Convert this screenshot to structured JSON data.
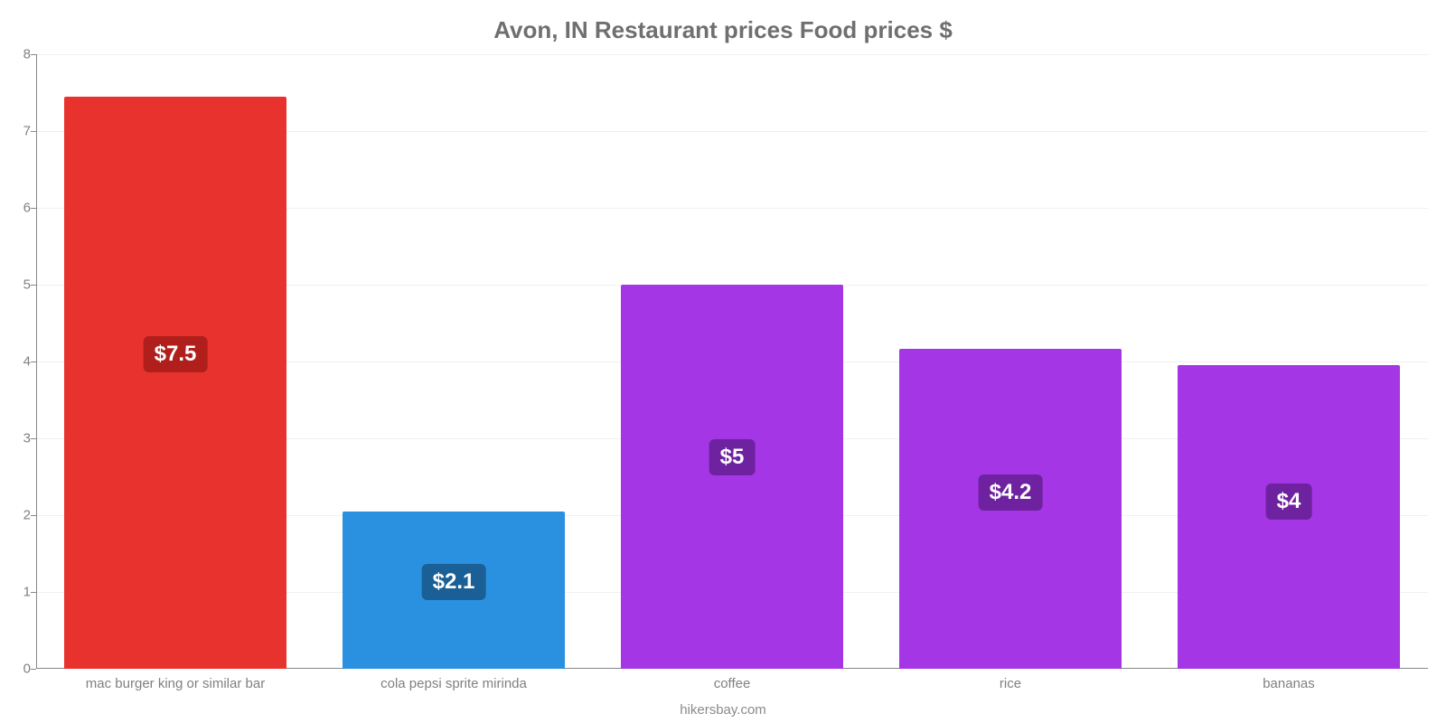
{
  "chart": {
    "type": "bar",
    "title": "Avon, IN Restaurant prices Food prices $",
    "title_color": "#6f6f6f",
    "title_fontsize": 26,
    "attribution": "hikersbay.com",
    "attribution_color": "#8a8a8a",
    "background_color": "#ffffff",
    "grid_color": "#f0f0f0",
    "axis_color": "#888888",
    "label_color": "#808080",
    "label_fontsize": 15,
    "value_fontsize": 24,
    "ylim": [
      0,
      8
    ],
    "ytick_step": 1,
    "yticks": [
      0,
      1,
      2,
      3,
      4,
      5,
      6,
      7,
      8
    ],
    "bar_width": 0.8,
    "categories": [
      "mac burger king or similar bar",
      "cola pepsi sprite mirinda",
      "coffee",
      "rice",
      "bananas"
    ],
    "values": [
      7.45,
      2.05,
      5.0,
      4.17,
      3.95
    ],
    "value_labels": [
      "$7.5",
      "$2.1",
      "$5",
      "$4.2",
      "$4"
    ],
    "bar_colors": [
      "#e8322d",
      "#2a91e0",
      "#a436e5",
      "#a436e5",
      "#a436e5"
    ],
    "badge_colors": [
      "#b01f1b",
      "#1a5f96",
      "#6f22a0",
      "#6f22a0",
      "#6f22a0"
    ],
    "badge_text_color": "#ffffff"
  }
}
